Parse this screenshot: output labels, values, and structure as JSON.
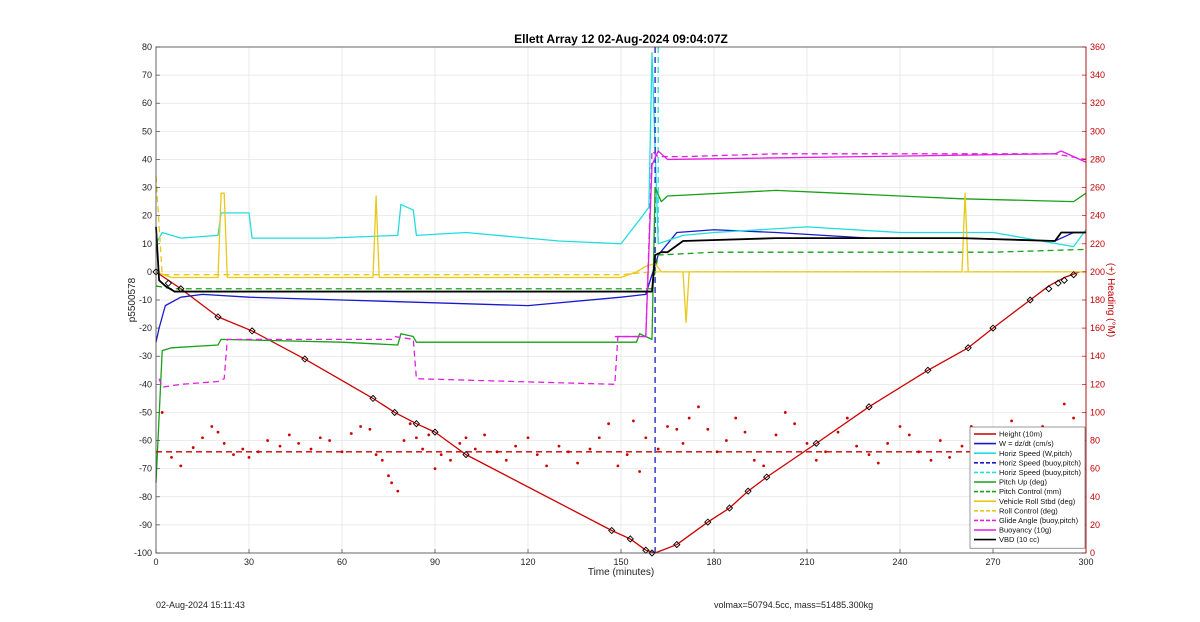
{
  "footer": {
    "timestamp": "02-Aug-2024 15:11:43",
    "stats": "volmax=50794.5cc, mass=51485.300kg"
  },
  "chart_data": {
    "type": "line",
    "title": "Ellett Array 12 02-Aug-2024 09:04:07Z",
    "xlabel": "Time (minutes)",
    "ylabel": "p5500578",
    "y2label": "(+) Heading (°M)",
    "xlim": [
      0,
      300
    ],
    "ylim": [
      -100,
      80
    ],
    "y2lim": [
      0,
      360
    ],
    "xticks": [
      0,
      30,
      60,
      90,
      120,
      150,
      180,
      210,
      240,
      270,
      300
    ],
    "yticks": [
      -100,
      -90,
      -80,
      -70,
      -60,
      -50,
      -40,
      -30,
      -20,
      -10,
      0,
      10,
      20,
      30,
      40,
      50,
      60,
      70,
      80
    ],
    "y2ticks": [
      0,
      20,
      40,
      60,
      80,
      100,
      120,
      140,
      160,
      180,
      200,
      220,
      240,
      260,
      280,
      300,
      320,
      340,
      360
    ],
    "grid": true,
    "legend_location": "lower-right",
    "series": [
      {
        "name": "Height (10m)",
        "color": "#cc0000",
        "style": "solid",
        "axis": "left",
        "x": [
          0,
          8,
          20,
          31,
          48,
          70,
          77,
          84,
          90,
          100,
          147,
          153,
          158,
          161,
          168,
          178,
          185,
          191,
          197,
          213,
          230,
          249,
          262,
          270,
          282,
          288,
          293,
          298
        ],
        "y": [
          0,
          -6,
          -16,
          -21,
          -31,
          -45,
          -50,
          -54,
          -57,
          -65,
          -92,
          -95,
          -99,
          -100,
          -97,
          -89,
          -84,
          -78,
          -73,
          -61,
          -48,
          -35,
          -27,
          -20,
          -10,
          -5,
          -2,
          0
        ]
      },
      {
        "name": "W = dz/dt (cm/s)",
        "color": "#1a1acc",
        "style": "solid",
        "axis": "left",
        "x": [
          0,
          1,
          3,
          8,
          15,
          30,
          60,
          90,
          120,
          150,
          158,
          162,
          168,
          180,
          200,
          230,
          260,
          290,
          296,
          300
        ],
        "y": [
          -25,
          -20,
          -12,
          -9,
          -8,
          -9,
          -10,
          -11,
          -12,
          -9,
          -8,
          6,
          14,
          15,
          14,
          12,
          12,
          11,
          14,
          14
        ]
      },
      {
        "name": "Horiz Speed (W,pitch)",
        "color": "#22dddd",
        "style": "solid",
        "axis": "left",
        "x": [
          0,
          2,
          8,
          20,
          21,
          30,
          31,
          55,
          78,
          79,
          83,
          84,
          100,
          130,
          150,
          157,
          159,
          160,
          162,
          170,
          180,
          210,
          240,
          270,
          296,
          300
        ],
        "y": [
          10,
          14,
          12,
          13,
          21,
          21,
          12,
          12,
          13,
          24,
          22,
          13,
          14,
          11,
          10,
          20,
          23,
          78,
          10,
          13,
          14,
          16,
          14,
          14,
          9,
          15
        ]
      },
      {
        "name": "Horiz Speed (buoy,pitch)",
        "color": "#1a1acc",
        "style": "dashed",
        "axis": "left",
        "x": [
          161,
          161
        ],
        "y": [
          -100,
          80
        ]
      },
      {
        "name": "Horiz Speed (buoy,pitch)",
        "color": "#22dddd",
        "style": "dashed",
        "axis": "left",
        "x": [
          162,
          162
        ],
        "y": [
          80,
          10
        ]
      },
      {
        "name": "Pitch Up (deg)",
        "color": "#18a018",
        "style": "solid",
        "axis": "left",
        "x": [
          0,
          2,
          5,
          20,
          21,
          60,
          78,
          79,
          83,
          84,
          155,
          156,
          160,
          161,
          163,
          165,
          200,
          220,
          240,
          260,
          296,
          300
        ],
        "y": [
          -75,
          -28,
          -27,
          -26,
          -24,
          -25,
          -26,
          -22,
          -23,
          -25,
          -25,
          -22,
          -24,
          30,
          25,
          27,
          29,
          28,
          27,
          26,
          25,
          28
        ]
      },
      {
        "name": "Pitch Control (mm)",
        "color": "#18a018",
        "style": "dashed",
        "axis": "left",
        "x": [
          0,
          5,
          30,
          90,
          150,
          160,
          162,
          180,
          210,
          240,
          270,
          300
        ],
        "y": [
          -5,
          -6,
          -6,
          -6,
          -6,
          -6,
          6,
          7,
          7,
          7,
          7,
          8
        ]
      },
      {
        "name": "Vehicle Roll Stbd (deg)",
        "color": "#e8c818",
        "style": "solid",
        "axis": "left",
        "x": [
          0,
          5,
          20,
          21,
          22,
          23,
          70,
          71,
          72,
          150,
          155,
          158,
          161,
          163,
          170,
          171,
          172,
          210,
          260,
          261,
          262,
          296,
          300
        ],
        "y": [
          0,
          -2,
          -2,
          28,
          28,
          -2,
          -2,
          27,
          -2,
          -2,
          0,
          2,
          3,
          0,
          0,
          -18,
          0,
          0,
          0,
          28,
          0,
          0,
          0
        ]
      },
      {
        "name": "Roll Control (deg)",
        "color": "#e8c818",
        "style": "dashed",
        "axis": "left",
        "x": [
          0,
          2,
          8,
          20,
          50,
          90,
          150,
          160,
          163,
          175,
          200,
          250,
          290,
          300
        ],
        "y": [
          34,
          -1,
          -1,
          -1,
          -1,
          -1,
          -1,
          0,
          0,
          0,
          0,
          0,
          0,
          0
        ]
      },
      {
        "name": "Glide Angle (buoy,pitch)",
        "color": "#e020e0",
        "style": "dashed",
        "axis": "left",
        "x": [
          1,
          2,
          8,
          20,
          22,
          23,
          76,
          77,
          83,
          84,
          148,
          149,
          158,
          160,
          162,
          170,
          200,
          240,
          290,
          300
        ],
        "y": [
          -38,
          -41,
          -40,
          -39,
          -38,
          -24,
          -24,
          -23,
          -24,
          -38,
          -40,
          -23,
          -23,
          43,
          41,
          41,
          42,
          42,
          42,
          40
        ]
      },
      {
        "name": "Buoyancy (10g)",
        "color": "#e020e0",
        "style": "solid",
        "axis": "left",
        "x": [
          148,
          158,
          160,
          162,
          165,
          290,
          292,
          296,
          300
        ],
        "y": [
          -23,
          -23,
          38,
          43,
          40,
          42,
          43,
          41,
          39
        ]
      },
      {
        "name": "VBD (10 cc)",
        "color": "#000000",
        "style": "solid",
        "axis": "left",
        "x": [
          0,
          1,
          3,
          6,
          30,
          90,
          150,
          160,
          161,
          163,
          165,
          170,
          200,
          260,
          290,
          292,
          300
        ],
        "y": [
          16,
          -3,
          -5,
          -7,
          -7,
          -7,
          -7,
          -7,
          6,
          7,
          7,
          11,
          12,
          12,
          11,
          14,
          14
        ]
      },
      {
        "color": "#cc0000",
        "style": "dashed",
        "axis": "right",
        "x": [
          0,
          300
        ],
        "y": [
          72,
          72
        ]
      },
      {
        "color": "#cc0000",
        "style": "dots",
        "axis": "right",
        "x": [
          2,
          5,
          8,
          12,
          15,
          18,
          20,
          22,
          25,
          28,
          30,
          33,
          36,
          40,
          43,
          46,
          50,
          53,
          56,
          60,
          63,
          66,
          69,
          71,
          73,
          75,
          76,
          78,
          80,
          82,
          84,
          86,
          88,
          90,
          92,
          95,
          98,
          100,
          103,
          106,
          110,
          113,
          116,
          120,
          123,
          126,
          130,
          133,
          136,
          140,
          143,
          146,
          149,
          152,
          154,
          156,
          158,
          162,
          165,
          168,
          170,
          172,
          175,
          178,
          181,
          184,
          187,
          190,
          193,
          196,
          200,
          203,
          206,
          210,
          213,
          216,
          220,
          223,
          226,
          230,
          233,
          236,
          240,
          243,
          246,
          250,
          253,
          256,
          260,
          263,
          266,
          270,
          273,
          276,
          280,
          283,
          286,
          290,
          293,
          296,
          298
        ],
        "y": [
          100,
          68,
          62,
          75,
          82,
          90,
          86,
          78,
          70,
          74,
          68,
          72,
          80,
          76,
          84,
          78,
          74,
          82,
          80,
          72,
          85,
          90,
          88,
          70,
          66,
          55,
          50,
          44,
          80,
          92,
          82,
          74,
          84,
          60,
          70,
          66,
          78,
          82,
          74,
          84,
          72,
          66,
          76,
          82,
          70,
          62,
          76,
          72,
          64,
          74,
          82,
          92,
          62,
          70,
          94,
          58,
          82,
          74,
          90,
          88,
          78,
          96,
          104,
          88,
          72,
          80,
          96,
          86,
          66,
          62,
          84,
          100,
          92,
          78,
          66,
          72,
          86,
          96,
          76,
          70,
          64,
          78,
          90,
          84,
          72,
          66,
          80,
          68,
          76,
          90,
          82,
          62,
          70,
          94,
          74,
          66,
          90,
          88,
          106,
          96,
          82
        ]
      },
      {
        "color": "#000000",
        "style": "markers",
        "axis": "left",
        "x": [
          0,
          4,
          8,
          20,
          31,
          48,
          70,
          77,
          84,
          90,
          100,
          147,
          153,
          158,
          160,
          168,
          178,
          185,
          191,
          197,
          213,
          230,
          249,
          262,
          270,
          282,
          288,
          291,
          293,
          296
        ],
        "y": [
          0,
          -4,
          -6,
          -16,
          -21,
          -31,
          -45,
          -50,
          -54,
          -57,
          -65,
          -92,
          -95,
          -99,
          -100,
          -97,
          -89,
          -84,
          -78,
          -73,
          -61,
          -48,
          -35,
          -27,
          -20,
          -10,
          -6,
          -4,
          -3,
          -1
        ]
      }
    ]
  }
}
